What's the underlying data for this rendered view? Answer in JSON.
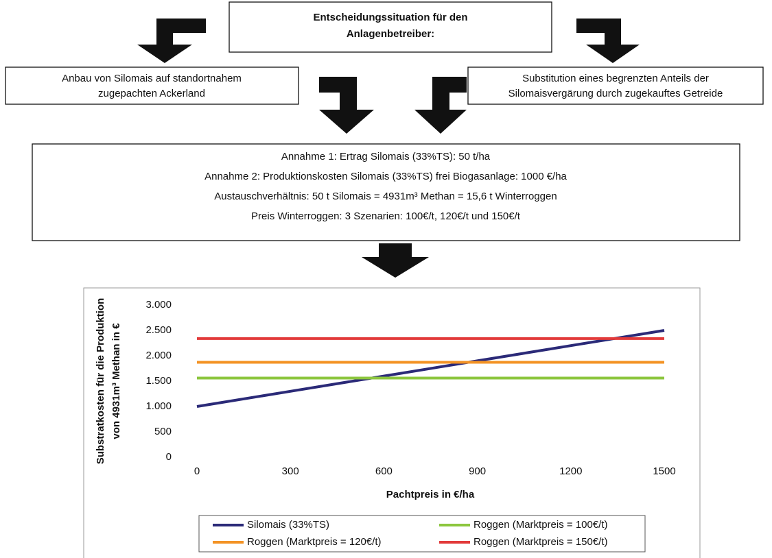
{
  "decision_box": {
    "lines": [
      "Entscheidungssituation für den",
      "Anlagenbetreiber:"
    ]
  },
  "option_left": {
    "lines": [
      "Anbau von Silomais auf standortnahem",
      "zugepachten Ackerland"
    ]
  },
  "option_right": {
    "lines": [
      "Substitution eines begrenzten Anteils der",
      "Silomaisvergärung durch zugekauftes Getreide"
    ]
  },
  "assumptions": {
    "lines": [
      "Annahme 1: Ertrag Silomais (33%TS): 50 t/ha",
      "Annahme 2: Produktionskosten Silomais (33%TS) frei Biogasanlage: 1000 €/ha",
      "Austauschverhältnis: 50 t Silomais = 4931m³ Methan = 15,6 t Winterroggen",
      "Preis Winterroggen: 3 Szenarien: 100€/t, 120€/t und 150€/t"
    ]
  },
  "chart_data": {
    "type": "line",
    "x_label": "Pachtpreis in €/ha",
    "y_label": [
      "Substratkosten für die Produktion",
      "von 4931m³ Methan in €"
    ],
    "x": [
      0,
      300,
      600,
      900,
      1200,
      1500
    ],
    "series": [
      {
        "name": "Silomais (33%TS)",
        "color": "#2b2a78",
        "values": [
          1000,
          1300,
          1600,
          1900,
          2200,
          2500
        ]
      },
      {
        "name": "Roggen (Marktpreis = 100€/t)",
        "color": "#8cc63e",
        "values": [
          1560,
          1560,
          1560,
          1560,
          1560,
          1560
        ]
      },
      {
        "name": "Roggen (Marktpreis = 120€/t)",
        "color": "#f39325",
        "values": [
          1872,
          1872,
          1872,
          1872,
          1872,
          1872
        ]
      },
      {
        "name": "Roggen (Marktpreis = 150€/t)",
        "color": "#e23a3a",
        "values": [
          2340,
          2340,
          2340,
          2340,
          2340,
          2340
        ]
      }
    ],
    "xlim": [
      0,
      1500
    ],
    "xticks": [
      0,
      300,
      600,
      900,
      1200,
      1500
    ],
    "ylim": [
      0,
      3000
    ],
    "yticks": [
      0,
      500,
      {
        "value": 1000,
        "label": "1.000"
      },
      {
        "value": 1500,
        "label": "1.500"
      },
      {
        "value": 2000,
        "label": "2.000"
      },
      {
        "value": 2500,
        "label": "2.500"
      },
      {
        "value": 3000,
        "label": "3.000"
      }
    ],
    "grid": false
  }
}
